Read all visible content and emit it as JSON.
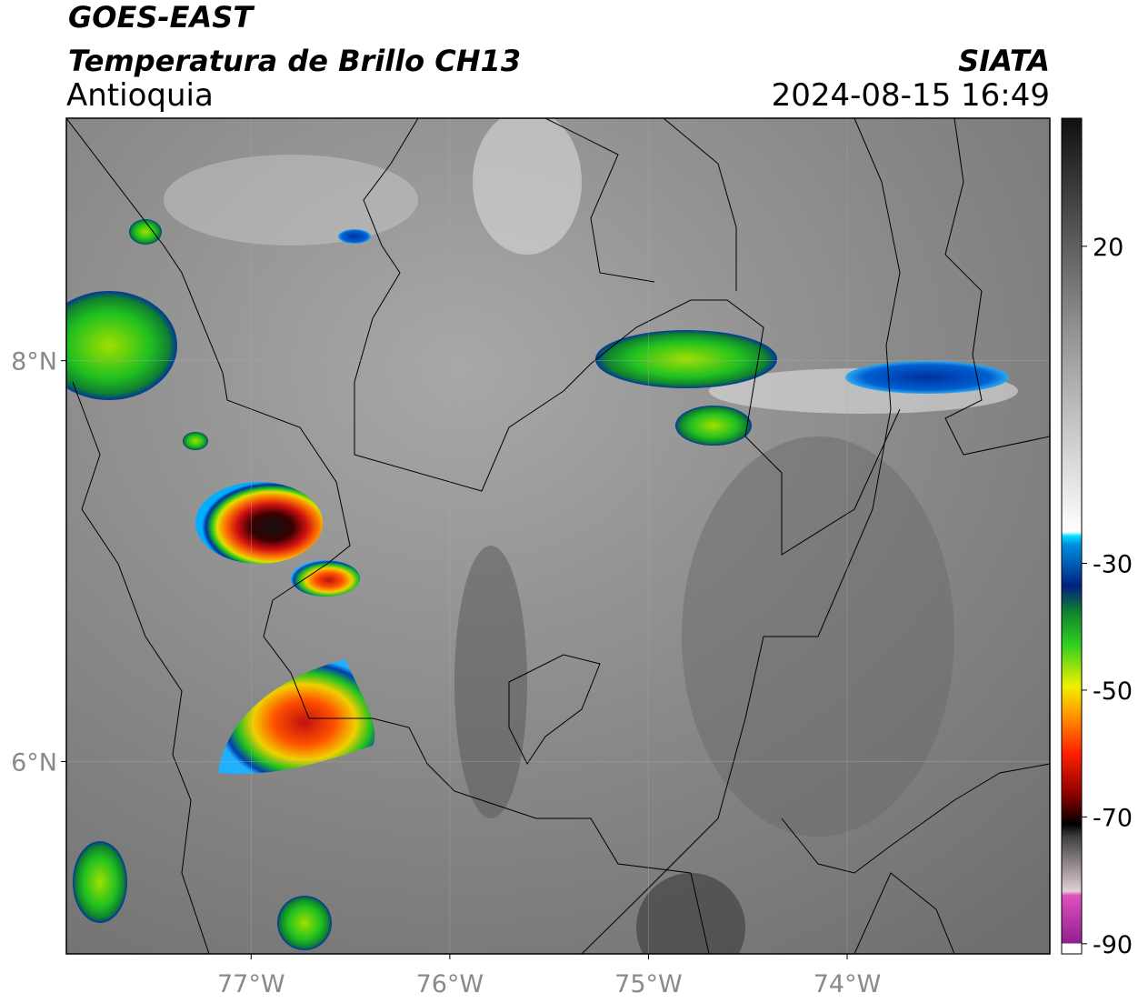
{
  "header": {
    "title": "GOES-EAST",
    "subtitle": "Temperatura de Brillo CH13",
    "region": "Antioquia",
    "source": "SIATA",
    "datetime": "2024-08-15 16:49"
  },
  "map": {
    "xlim": [
      -77.93,
      -72.98
    ],
    "ylim": [
      5.04,
      9.21
    ],
    "xticks": [
      {
        "value": -77,
        "label": "77°W"
      },
      {
        "value": -76,
        "label": "76°W"
      },
      {
        "value": -75,
        "label": "75°W"
      },
      {
        "value": -74,
        "label": "74°W"
      }
    ],
    "yticks": [
      {
        "value": 8,
        "label": "8°N"
      },
      {
        "value": 6,
        "label": "6°N"
      }
    ],
    "grid": true
  },
  "colorbar": {
    "lim": [
      -91.6,
      40.2
    ],
    "ticks": [
      20,
      -30,
      -50,
      -70,
      -90
    ]
  }
}
